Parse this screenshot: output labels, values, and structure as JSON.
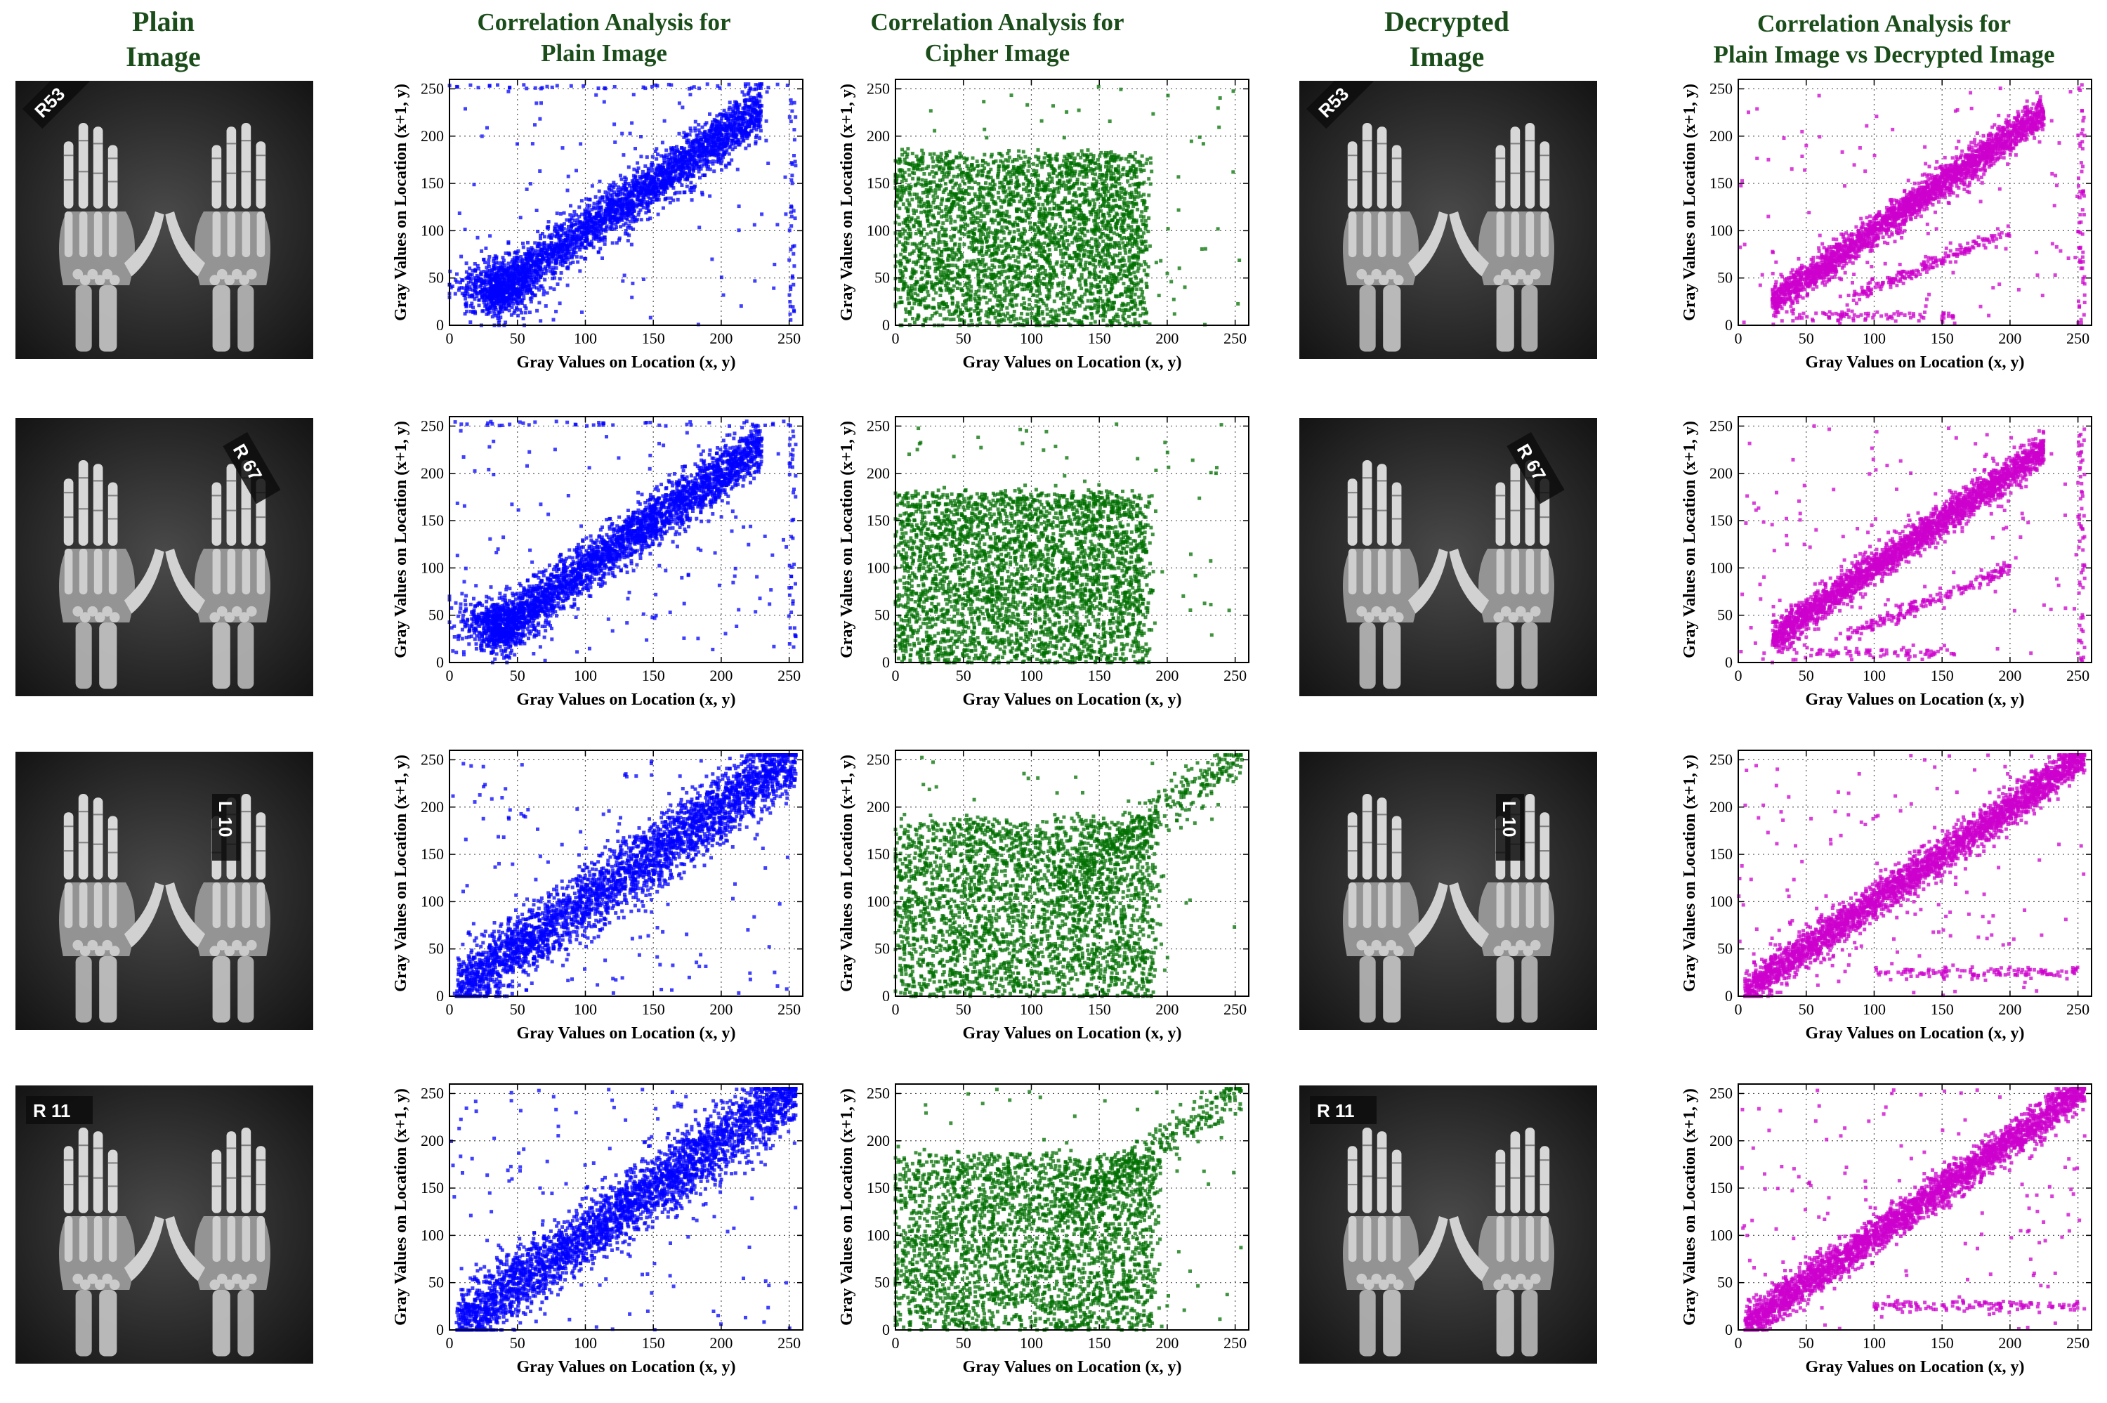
{
  "headers": {
    "col1": [
      "Plain",
      "Image"
    ],
    "col2": [
      "Correlation Analysis for",
      "Plain Image"
    ],
    "col3": [
      "Correlation Analysis for",
      "Cipher Image"
    ],
    "col4": [
      "Decrypted",
      "Image"
    ],
    "col5": [
      "Correlation Analysis for",
      "Plain Image vs Decrypted Image"
    ]
  },
  "image_tags": [
    "R53",
    "R 67",
    "L 10",
    "R 11"
  ],
  "colors": {
    "plain": "#0000ff",
    "cipher": "#007000",
    "decrypted": "#cc00cc",
    "header": "#1a4d1a"
  },
  "chart_data": [
    {
      "type": "scatter",
      "series": "plain",
      "row": 1,
      "pattern": "plain-early",
      "title": "Correlation Analysis for Plain Image",
      "xlabel": "Gray Values on Location (x, y)",
      "ylabel": "Gray Values on Location (x+1, y)",
      "xlim": [
        0,
        260
      ],
      "ylim": [
        0,
        260
      ],
      "xticks": [
        0,
        50,
        100,
        150,
        200,
        250
      ],
      "yticks": [
        0,
        50,
        100,
        150,
        200,
        250
      ]
    },
    {
      "type": "scatter",
      "series": "cipher",
      "row": 1,
      "pattern": "cipher-box",
      "title": "Correlation Analysis for Cipher Image",
      "xlabel": "Gray Values on Location (x, y)",
      "ylabel": "Gray Values on Location (x+1, y)",
      "xlim": [
        0,
        260
      ],
      "ylim": [
        0,
        260
      ],
      "xticks": [
        0,
        50,
        100,
        150,
        200,
        250
      ],
      "yticks": [
        0,
        50,
        100,
        150,
        200,
        250
      ]
    },
    {
      "type": "scatter",
      "series": "decrypted",
      "row": 1,
      "pattern": "decrypted",
      "title": "Correlation Analysis for Plain Image vs Decrypted Image",
      "xlabel": "Gray Values on Location (x, y)",
      "ylabel": "Gray Values on Location (x+1, y)",
      "xlim": [
        0,
        260
      ],
      "ylim": [
        0,
        260
      ],
      "xticks": [
        0,
        50,
        100,
        150,
        200,
        250
      ],
      "yticks": [
        0,
        50,
        100,
        150,
        200,
        250
      ]
    },
    {
      "type": "scatter",
      "series": "plain",
      "row": 2,
      "pattern": "plain-early",
      "title": "Correlation Analysis for Plain Image",
      "xlabel": "Gray Values on Location (x, y)",
      "ylabel": "Gray Values on Location (x+1, y)",
      "xlim": [
        0,
        260
      ],
      "ylim": [
        0,
        260
      ],
      "xticks": [
        0,
        50,
        100,
        150,
        200,
        250
      ],
      "yticks": [
        0,
        50,
        100,
        150,
        200,
        250
      ]
    },
    {
      "type": "scatter",
      "series": "cipher",
      "row": 2,
      "pattern": "cipher-box",
      "title": "Correlation Analysis for Cipher Image",
      "xlabel": "Gray Values on Location (x, y)",
      "ylabel": "Gray Values on Location (x+1, y)",
      "xlim": [
        0,
        260
      ],
      "ylim": [
        0,
        260
      ],
      "xticks": [
        0,
        50,
        100,
        150,
        200,
        250
      ],
      "yticks": [
        0,
        50,
        100,
        150,
        200,
        250
      ]
    },
    {
      "type": "scatter",
      "series": "decrypted",
      "row": 2,
      "pattern": "decrypted",
      "title": "Correlation Analysis for Plain Image vs Decrypted Image",
      "xlabel": "Gray Values on Location (x, y)",
      "ylabel": "Gray Values on Location (x+1, y)",
      "xlim": [
        0,
        260
      ],
      "ylim": [
        0,
        260
      ],
      "xticks": [
        0,
        50,
        100,
        150,
        200,
        250
      ],
      "yticks": [
        0,
        50,
        100,
        150,
        200,
        250
      ]
    },
    {
      "type": "scatter",
      "series": "plain",
      "row": 3,
      "pattern": "plain-full",
      "title": "Correlation Analysis for Plain Image",
      "xlabel": "Gray Values on Location (x, y)",
      "ylabel": "Gray Values on Location (x+1, y)",
      "xlim": [
        0,
        260
      ],
      "ylim": [
        0,
        260
      ],
      "xticks": [
        0,
        50,
        100,
        150,
        200,
        250
      ],
      "yticks": [
        0,
        50,
        100,
        150,
        200,
        250
      ]
    },
    {
      "type": "scatter",
      "series": "cipher",
      "row": 3,
      "pattern": "cipher-diag",
      "title": "Correlation Analysis for Cipher Image",
      "xlabel": "Gray Values on Location (x, y)",
      "ylabel": "Gray Values on Location (x+1, y)",
      "xlim": [
        0,
        260
      ],
      "ylim": [
        0,
        260
      ],
      "xticks": [
        0,
        50,
        100,
        150,
        200,
        250
      ],
      "yticks": [
        0,
        50,
        100,
        150,
        200,
        250
      ]
    },
    {
      "type": "scatter",
      "series": "decrypted",
      "row": 3,
      "pattern": "decrypted-full",
      "title": "Correlation Analysis for Plain Image vs Decrypted Image",
      "xlabel": "Gray Values on Location (x, y)",
      "ylabel": "Gray Values on Location (x+1, y)",
      "xlim": [
        0,
        260
      ],
      "ylim": [
        0,
        260
      ],
      "xticks": [
        0,
        50,
        100,
        150,
        200,
        250
      ],
      "yticks": [
        0,
        50,
        100,
        150,
        200,
        250
      ]
    },
    {
      "type": "scatter",
      "series": "plain",
      "row": 4,
      "pattern": "plain-full",
      "title": "Correlation Analysis for Plain Image",
      "xlabel": "Gray Values on Location (x, y)",
      "ylabel": "Gray Values on Location (x+1, y)",
      "xlim": [
        0,
        260
      ],
      "ylim": [
        0,
        260
      ],
      "xticks": [
        0,
        50,
        100,
        150,
        200,
        250
      ],
      "yticks": [
        0,
        50,
        100,
        150,
        200,
        250
      ]
    },
    {
      "type": "scatter",
      "series": "cipher",
      "row": 4,
      "pattern": "cipher-diag",
      "title": "Correlation Analysis for Cipher Image",
      "xlabel": "Gray Values on Location (x, y)",
      "ylabel": "Gray Values on Location (x+1, y)",
      "xlim": [
        0,
        260
      ],
      "ylim": [
        0,
        260
      ],
      "xticks": [
        0,
        50,
        100,
        150,
        200,
        250
      ],
      "yticks": [
        0,
        50,
        100,
        150,
        200,
        250
      ]
    },
    {
      "type": "scatter",
      "series": "decrypted",
      "row": 4,
      "pattern": "decrypted-full",
      "title": "Correlation Analysis for Plain Image vs Decrypted Image",
      "xlabel": "Gray Values on Location (x, y)",
      "ylabel": "Gray Values on Location (x+1, y)",
      "xlim": [
        0,
        260
      ],
      "ylim": [
        0,
        260
      ],
      "xticks": [
        0,
        50,
        100,
        150,
        200,
        250
      ],
      "yticks": [
        0,
        50,
        100,
        150,
        200,
        250
      ]
    }
  ]
}
